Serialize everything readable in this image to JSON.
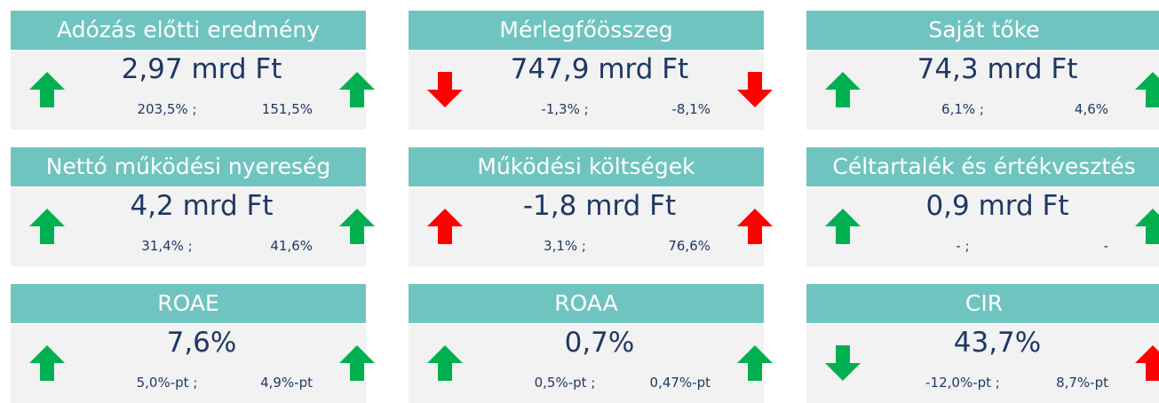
{
  "cards": [
    {
      "title": "Adózás előtti eredmény",
      "value": "2,97 mrd Ft",
      "change_left": "203,5% ;",
      "change_right": "151,5%",
      "arrows": [
        {
          "direction": "up",
          "color": "#00b050"
        },
        {
          "direction": "up",
          "color": "#00b050"
        }
      ]
    },
    {
      "title": "Mérlegfőösszeg",
      "value": "747,9 mrd Ft",
      "change_left": "-1,3% ;",
      "change_right": "-8,1%",
      "arrows": [
        {
          "direction": "down",
          "color": "#ff0000"
        },
        {
          "direction": "down",
          "color": "#ff0000"
        }
      ]
    },
    {
      "title": "Saját tőke",
      "value": "74,3 mrd Ft",
      "change_left": "6,1% ;",
      "change_right": "4,6%",
      "arrows": [
        {
          "direction": "up",
          "color": "#00b050"
        },
        {
          "direction": "up",
          "color": "#00b050"
        }
      ]
    },
    {
      "title": "Nettó működési nyereség",
      "value": "4,2 mrd Ft",
      "change_left": "31,4% ;",
      "change_right": "41,6%",
      "arrows": [
        {
          "direction": "up",
          "color": "#00b050"
        },
        {
          "direction": "up",
          "color": "#00b050"
        }
      ]
    },
    {
      "title": "Működési költségek",
      "value": "-1,8 mrd Ft",
      "change_left": "3,1% ;",
      "change_right": "76,6%",
      "arrows": [
        {
          "direction": "up",
          "color": "#ff0000"
        },
        {
          "direction": "up",
          "color": "#ff0000"
        }
      ]
    },
    {
      "title": "Céltartalék és értékvesztés",
      "value": "0,9 mrd Ft",
      "change_left": "- ;",
      "change_right": "-",
      "arrows": [
        {
          "direction": "up",
          "color": "#00b050"
        },
        {
          "direction": "up",
          "color": "#00b050"
        }
      ]
    },
    {
      "title": "ROAE",
      "value": "7,6%",
      "change_left": "5,0%-pt ;",
      "change_right": "4,9%-pt",
      "arrows": [
        {
          "direction": "up",
          "color": "#00b050"
        },
        {
          "direction": "up",
          "color": "#00b050"
        }
      ]
    },
    {
      "title": "ROAA",
      "value": "0,7%",
      "change_left": "0,5%-pt ;",
      "change_right": "0,47%-pt",
      "arrows": [
        {
          "direction": "up",
          "color": "#00b050"
        },
        {
          "direction": "up",
          "color": "#00b050"
        }
      ]
    },
    {
      "title": "CIR",
      "value": "43,7%",
      "change_left": "-12,0%-pt ;",
      "change_right": "8,7%-pt",
      "arrows": [
        {
          "direction": "down",
          "color": "#00b050"
        },
        {
          "direction": "up",
          "color": "#ff0000"
        }
      ]
    }
  ]
}
